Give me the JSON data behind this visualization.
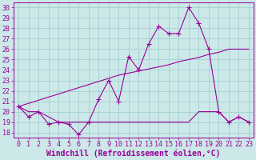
{
  "xlabel": "Windchill (Refroidissement éolien,°C)",
  "x": [
    0,
    1,
    2,
    3,
    4,
    5,
    6,
    7,
    8,
    9,
    10,
    11,
    12,
    13,
    14,
    15,
    16,
    17,
    18,
    19,
    20,
    21,
    22,
    23
  ],
  "temp": [
    20.5,
    19.5,
    20.0,
    18.8,
    19.0,
    18.8,
    17.8,
    19.0,
    21.2,
    23.0,
    21.0,
    25.3,
    24.0,
    26.5,
    28.2,
    27.5,
    27.5,
    30.0,
    28.5,
    26.0,
    20.0,
    19.0,
    19.5,
    19.0
  ],
  "flat_line": [
    20.5,
    20.0,
    20.0,
    19.5,
    19.0,
    19.0,
    19.0,
    19.0,
    19.0,
    19.0,
    19.0,
    19.0,
    19.0,
    19.0,
    19.0,
    19.0,
    19.0,
    19.0,
    20.0,
    20.0,
    20.0,
    19.0,
    19.5,
    19.0
  ],
  "trend": [
    20.5,
    20.8,
    21.1,
    21.4,
    21.7,
    22.0,
    22.3,
    22.6,
    22.9,
    23.2,
    23.5,
    23.7,
    23.9,
    24.1,
    24.3,
    24.5,
    24.8,
    25.0,
    25.2,
    25.5,
    25.7,
    26.0,
    26.0,
    26.0
  ],
  "line_color": "#990099",
  "bg_color": "#cce8e8",
  "grid_color": "#99cccc",
  "ylim": [
    17.5,
    30.5
  ],
  "ytick_vals": [
    18,
    19,
    20,
    21,
    22,
    23,
    24,
    25,
    26,
    27,
    28,
    29,
    30
  ],
  "xlabel_fontsize": 7,
  "tick_fontsize": 6,
  "lw": 0.8,
  "marker_size": 2.2
}
